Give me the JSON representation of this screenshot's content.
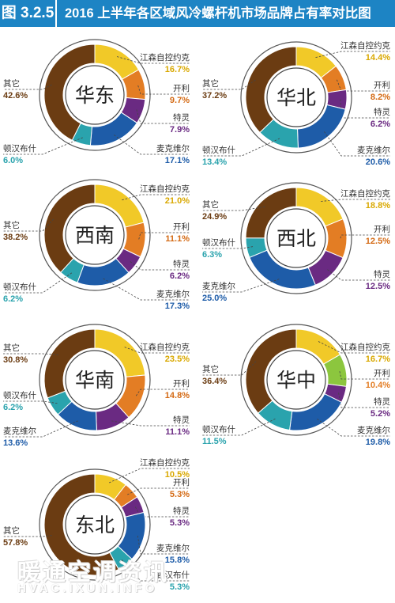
{
  "header": {
    "figure_number": "图 3.2.5",
    "title": "2016 上半年各区域风冷螺杆机市场品牌占有率对比图"
  },
  "colors": {
    "header_blue": "#1d84c4",
    "江森自控约克": "#f1c928",
    "开利": "#e37d24",
    "开利_alt": "#8cc63e",
    "特灵": "#6a2a82",
    "麦克维尔": "#1e5ca8",
    "顿汉布什": "#2aa3ad",
    "其它": "#6b3c12"
  },
  "chart_data": [
    {
      "type": "pie",
      "region": "华东",
      "slices": [
        {
          "brand": "江森自控约克",
          "value": 16.7,
          "label": "16.7%"
        },
        {
          "brand": "开利",
          "value": 9.7,
          "label": "9.7%"
        },
        {
          "brand": "特灵",
          "value": 7.9,
          "label": "7.9%"
        },
        {
          "brand": "麦克维尔",
          "value": 17.1,
          "label": "17.1%"
        },
        {
          "brand": "顿汉布什",
          "value": 6.0,
          "label": "6.0%"
        },
        {
          "brand": "其它",
          "value": 42.6,
          "label": "42.6%"
        }
      ]
    },
    {
      "type": "pie",
      "region": "华北",
      "slices": [
        {
          "brand": "江森自控约克",
          "value": 14.4,
          "label": "14.4%"
        },
        {
          "brand": "开利",
          "value": 8.2,
          "label": "8.2%"
        },
        {
          "brand": "特灵",
          "value": 6.2,
          "label": "6.2%"
        },
        {
          "brand": "麦克维尔",
          "value": 20.6,
          "label": "20.6%"
        },
        {
          "brand": "顿汉布什",
          "value": 13.4,
          "label": "13.4%"
        },
        {
          "brand": "其它",
          "value": 37.2,
          "label": "37.2%"
        }
      ]
    },
    {
      "type": "pie",
      "region": "西南",
      "slices": [
        {
          "brand": "江森自控约克",
          "value": 21.0,
          "label": "21.0%"
        },
        {
          "brand": "开利",
          "value": 11.1,
          "label": "11.1%"
        },
        {
          "brand": "特灵",
          "value": 6.2,
          "label": "6.2%"
        },
        {
          "brand": "麦克维尔",
          "value": 17.3,
          "label": "17.3%"
        },
        {
          "brand": "顿汉布什",
          "value": 6.2,
          "label": "6.2%"
        },
        {
          "brand": "其它",
          "value": 38.2,
          "label": "38.2%"
        }
      ]
    },
    {
      "type": "pie",
      "region": "西北",
      "slices": [
        {
          "brand": "江森自控约克",
          "value": 18.8,
          "label": "18.8%"
        },
        {
          "brand": "开利",
          "value": 12.5,
          "label": "12.5%"
        },
        {
          "brand": "特灵",
          "value": 12.5,
          "label": "12.5%"
        },
        {
          "brand": "麦克维尔",
          "value": 25.0,
          "label": "25.0%"
        },
        {
          "brand": "顿汉布什",
          "value": 6.3,
          "label": "6.3%"
        },
        {
          "brand": "其它",
          "value": 24.9,
          "label": "24.9%"
        }
      ]
    },
    {
      "type": "pie",
      "region": "华南",
      "slices": [
        {
          "brand": "江森自控约克",
          "value": 23.5,
          "label": "23.5%"
        },
        {
          "brand": "开利",
          "value": 14.8,
          "label": "14.8%"
        },
        {
          "brand": "特灵",
          "value": 11.1,
          "label": "11.1%"
        },
        {
          "brand": "麦克维尔",
          "value": 13.6,
          "label": "13.6%"
        },
        {
          "brand": "顿汉布什",
          "value": 6.2,
          "label": "6.2%"
        },
        {
          "brand": "其它",
          "value": 30.8,
          "label": "30.8%"
        }
      ]
    },
    {
      "type": "pie",
      "region": "华中",
      "slices": [
        {
          "brand": "江森自控约克",
          "value": 16.7,
          "label": "16.7%"
        },
        {
          "brand": "开利",
          "value": 10.4,
          "label": "10.4%"
        },
        {
          "brand": "特灵",
          "value": 5.2,
          "label": "5.2%"
        },
        {
          "brand": "麦克维尔",
          "value": 19.8,
          "label": "19.8%"
        },
        {
          "brand": "顿汉布什",
          "value": 11.5,
          "label": "11.5%"
        },
        {
          "brand": "其它",
          "value": 36.4,
          "label": "36.4%"
        }
      ]
    },
    {
      "type": "pie",
      "region": "东北",
      "slices": [
        {
          "brand": "江森自控约克",
          "value": 10.5,
          "label": "10.5%"
        },
        {
          "brand": "开利",
          "value": 5.3,
          "label": "5.3%"
        },
        {
          "brand": "特灵",
          "value": 5.3,
          "label": "5.3%"
        },
        {
          "brand": "麦克维尔",
          "value": 15.8,
          "label": "15.8%"
        },
        {
          "brand": "顿汉布什",
          "value": 5.3,
          "label": "5.3%"
        },
        {
          "brand": "其它",
          "value": 57.8,
          "label": "57.8%"
        }
      ]
    }
  ],
  "watermark": {
    "chinese": "暖通空调资讯",
    "english": "HVAC.IXUN.INFO"
  }
}
